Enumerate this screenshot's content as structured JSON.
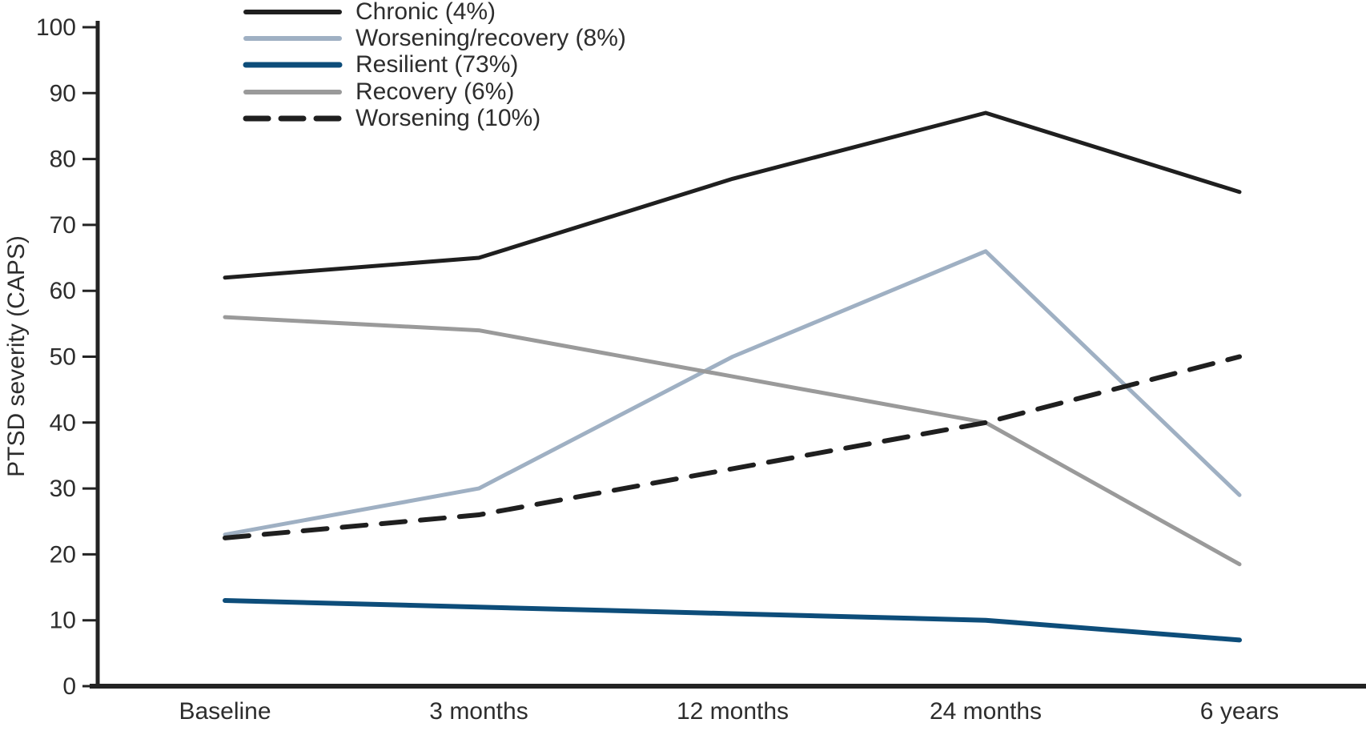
{
  "figure": {
    "background": "#ffffff",
    "axis_color": "#232323",
    "text_color": "#2d2d2d"
  },
  "chart_data": {
    "type": "line",
    "title": "",
    "xlabel": "",
    "ylabel": "PTSD severity (CAPS)",
    "ylim": [
      0,
      100
    ],
    "yticks": [
      0,
      10,
      20,
      30,
      40,
      50,
      60,
      70,
      80,
      90,
      100
    ],
    "categories": [
      "Baseline",
      "3 months",
      "12 months",
      "24 months",
      "6 years"
    ],
    "grid": false,
    "legend_position": "top-left-inside",
    "series": [
      {
        "name": "chronic",
        "label": "Chronic (4%)",
        "values": [
          62,
          65,
          77,
          87,
          75
        ],
        "color": "#1f1f1f",
        "style": "solid",
        "width": 5
      },
      {
        "name": "worsening-recovery",
        "label": "Worsening/recovery (8%)",
        "values": [
          23,
          30,
          50,
          66,
          29
        ],
        "color": "#9fb0c3",
        "style": "solid",
        "width": 5
      },
      {
        "name": "resilient",
        "label": "Resilient (73%)",
        "values": [
          13,
          12,
          11,
          10,
          7
        ],
        "color": "#0d4d7a",
        "style": "solid",
        "width": 6
      },
      {
        "name": "recovery",
        "label": "Recovery (6%)",
        "values": [
          56,
          54,
          47,
          40,
          18.5
        ],
        "color": "#9a9a9a",
        "style": "solid",
        "width": 5
      },
      {
        "name": "worsening",
        "label": "Worsening (10%)",
        "values": [
          22.5,
          26,
          33,
          40,
          50
        ],
        "color": "#1f1f1f",
        "style": "dashed",
        "width": 6
      }
    ]
  }
}
